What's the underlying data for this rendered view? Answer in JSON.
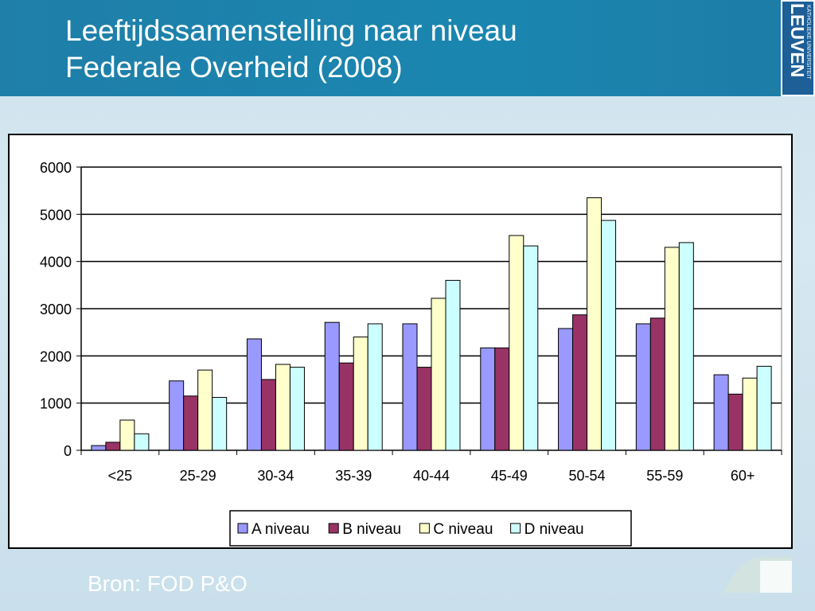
{
  "slide": {
    "title_line1": "Leeftijdssamenstelling naar niveau",
    "title_line2": "Federale Overheid (2008)",
    "source": "Bron: FOD P&O",
    "logo_text": "LEUVEN",
    "logo_subtext": "KATHOLIEKE UNIVERSITEIT",
    "colors": {
      "header": "#1a86b0",
      "text": "#ffffff"
    }
  },
  "chart_data": {
    "type": "bar",
    "title": "",
    "xlabel": "",
    "ylabel": "",
    "categories": [
      "<25",
      "25-29",
      "30-34",
      "35-39",
      "40-44",
      "45-49",
      "50-54",
      "55-59",
      "60+"
    ],
    "ylim": [
      0,
      6000
    ],
    "yticks": [
      0,
      1000,
      2000,
      3000,
      4000,
      5000,
      6000
    ],
    "grid": true,
    "legend_position": "bottom",
    "series": [
      {
        "name": "A niveau",
        "color": "#9999ff",
        "values": [
          100,
          1470,
          2360,
          2710,
          2680,
          2170,
          2580,
          2680,
          1600
        ]
      },
      {
        "name": "B niveau",
        "color": "#993366",
        "values": [
          170,
          1150,
          1500,
          1850,
          1760,
          2170,
          2870,
          2800,
          1190
        ]
      },
      {
        "name": "C niveau",
        "color": "#ffffcc",
        "values": [
          640,
          1700,
          1820,
          2400,
          3220,
          4550,
          5350,
          4300,
          1530
        ]
      },
      {
        "name": "D niveau",
        "color": "#ccffff",
        "values": [
          350,
          1120,
          1760,
          2680,
          3600,
          4330,
          4870,
          4400,
          1780
        ]
      }
    ]
  }
}
